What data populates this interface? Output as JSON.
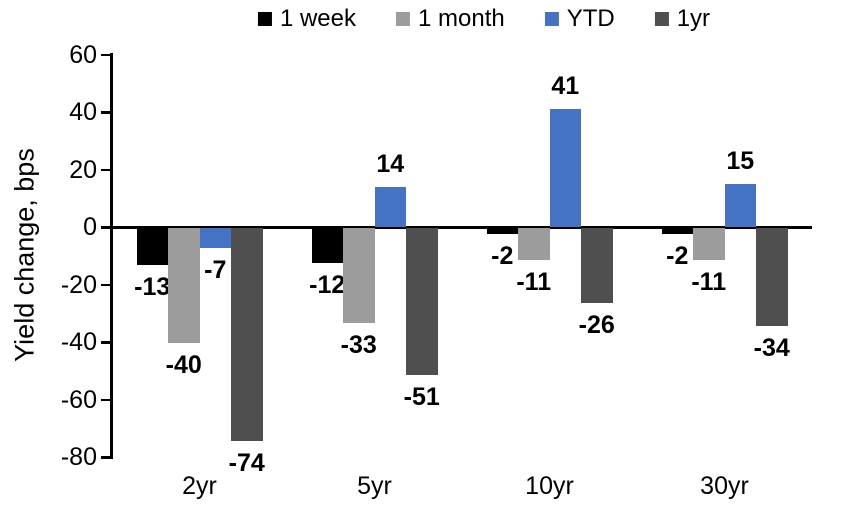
{
  "chart_data": {
    "type": "bar",
    "title": "",
    "ylabel": "Yield change, bps",
    "xlabel": "",
    "categories": [
      "2yr",
      "5yr",
      "10yr",
      "30yr"
    ],
    "series": [
      {
        "name": "1 week",
        "color": "#000000",
        "values": [
          -13,
          -12,
          -2,
          -2
        ]
      },
      {
        "name": "1 month",
        "color": "#9C9C9C",
        "values": [
          -40,
          -33,
          -11,
          -11
        ]
      },
      {
        "name": "YTD",
        "color": "#4472C4",
        "values": [
          -7,
          14,
          41,
          15
        ]
      },
      {
        "name": "1yr",
        "color": "#4F4F4F",
        "values": [
          -74,
          -51,
          -26,
          -34
        ]
      }
    ],
    "yticks": [
      60,
      40,
      20,
      0,
      -20,
      -40,
      -60,
      -80
    ],
    "ylim": [
      -80,
      60
    ],
    "grid": false,
    "legend_position": "top",
    "data_labels": true,
    "axis_color": "#000000",
    "text_color": "#000000"
  }
}
